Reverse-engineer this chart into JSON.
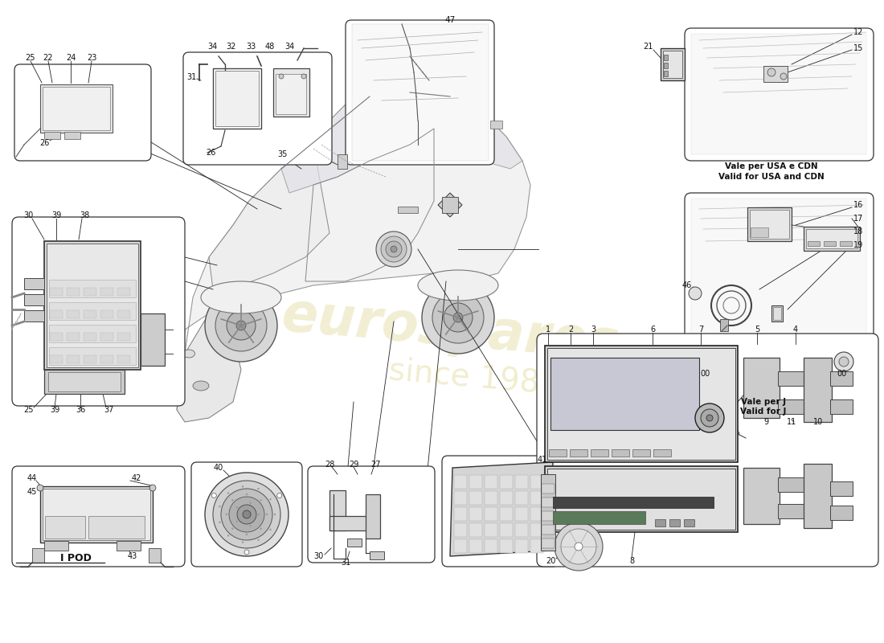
{
  "bg_color": "#ffffff",
  "watermark_color1": "#d4c870",
  "watermark_color2": "#c8b840",
  "vale_usa_text1": "Vale per USA e CDN",
  "vale_usa_text2": "Valid for USA and CDN",
  "vale_j_text1": "Vale per J",
  "vale_j_text2": "Valid for J",
  "ipod_text": "I POD",
  "car_body_color": "#f0f0f0",
  "car_line_color": "#888888",
  "box_edge_color": "#333333",
  "component_fill": "#e8e8e8",
  "component_dark": "#cccccc",
  "label_color": "#111111"
}
